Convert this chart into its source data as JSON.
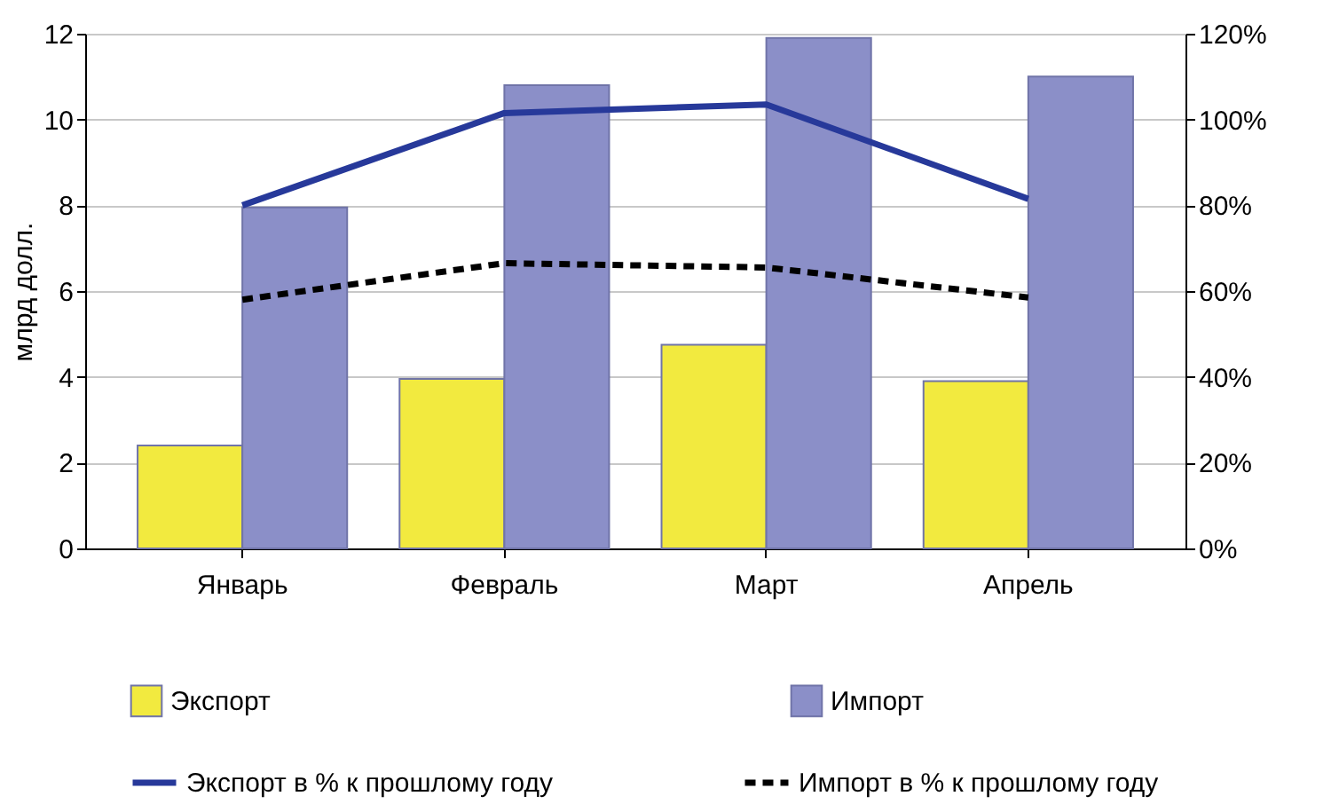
{
  "chart_data": {
    "type": "bar",
    "categories": [
      "Январь",
      "Февраль",
      "Март",
      "Апрель"
    ],
    "ylabel": "млрд  долл.",
    "ylim": [
      0,
      12
    ],
    "yticks": [
      0,
      2,
      4,
      6,
      8,
      10,
      12
    ],
    "y2lim": [
      0,
      120
    ],
    "y2ticks": [
      {
        "value": 0,
        "label": "0%"
      },
      {
        "value": 20,
        "label": "20%"
      },
      {
        "value": 40,
        "label": "40%"
      },
      {
        "value": 60,
        "label": "60%"
      },
      {
        "value": 80,
        "label": "80%"
      },
      {
        "value": 100,
        "label": "100%"
      },
      {
        "value": 120,
        "label": "120%"
      }
    ],
    "grid": "y",
    "legend": "bottom",
    "series": [
      {
        "name": "Экспорт",
        "color": "#f2ea3f",
        "values": [
          2.4,
          3.95,
          4.75,
          3.9
        ]
      },
      {
        "name": "Импорт",
        "color": "#8b8fc8",
        "values": [
          7.95,
          10.8,
          11.9,
          11.0
        ]
      },
      {
        "name": "Экспорт в % к прошлому году",
        "type": "line",
        "axis": "y2",
        "line_style": "solid",
        "color": "#27399a",
        "values": [
          80,
          101.5,
          103.5,
          81.5
        ]
      },
      {
        "name": "Импорт в % к прошлому году",
        "type": "line",
        "axis": "y2",
        "line_style": "dashed",
        "color": "#000000",
        "values": [
          58,
          66.5,
          65.5,
          58.5
        ]
      }
    ]
  }
}
